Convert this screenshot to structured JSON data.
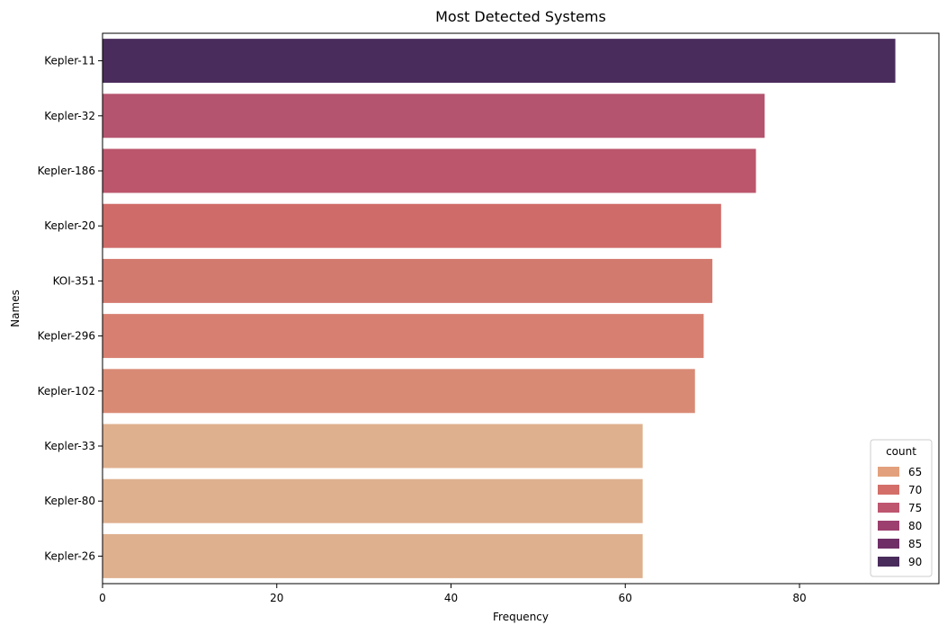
{
  "chart_data": {
    "type": "bar",
    "orientation": "horizontal",
    "title": "Most Detected Systems",
    "xlabel": "Frequency",
    "ylabel": "Names",
    "categories": [
      "Kepler-11",
      "Kepler-32",
      "Kepler-186",
      "Kepler-20",
      "KOI-351",
      "Kepler-296",
      "Kepler-102",
      "Kepler-33",
      "Kepler-80",
      "Kepler-26"
    ],
    "values": [
      91,
      76,
      75,
      71,
      70,
      69,
      68,
      62,
      62,
      62
    ],
    "colors": [
      "#4a2c5c",
      "#b4546e",
      "#bb566c",
      "#cf6b68",
      "#d37a6f",
      "#d78071",
      "#d98a75",
      "#dfb08e",
      "#dfb08e",
      "#dfb08e"
    ],
    "xlim": [
      0,
      96
    ],
    "xticks": [
      0,
      20,
      40,
      60,
      80
    ],
    "grid": false,
    "legend": {
      "title": "count",
      "position": "bottom-right",
      "entries": [
        {
          "label": "65",
          "color": "#e3a07c"
        },
        {
          "label": "70",
          "color": "#d36f68"
        },
        {
          "label": "75",
          "color": "#bf566f"
        },
        {
          "label": "80",
          "color": "#9c3f6e"
        },
        {
          "label": "85",
          "color": "#6f2f66"
        },
        {
          "label": "90",
          "color": "#4a2c5c"
        }
      ]
    }
  }
}
